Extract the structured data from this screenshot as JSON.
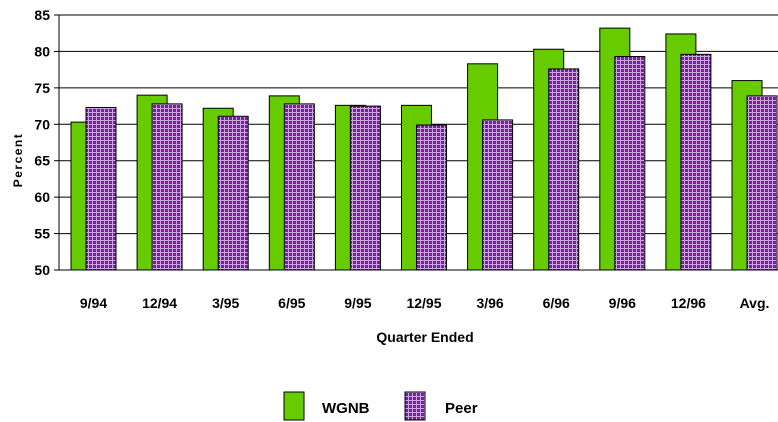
{
  "colors": {
    "wgnb_fill": "#66cc00",
    "peer_fill": "#7b1fa2",
    "peer_grid": "#c9a6e0",
    "gridline": "#000000"
  },
  "chart_data": {
    "type": "bar",
    "categories": [
      "9/94",
      "12/94",
      "3/95",
      "6/95",
      "9/95",
      "12/95",
      "3/96",
      "6/96",
      "9/96",
      "12/96",
      "Avg."
    ],
    "series": [
      {
        "name": "WGNB",
        "values": [
          70.3,
          74.0,
          72.2,
          73.9,
          72.6,
          72.6,
          78.3,
          80.3,
          83.2,
          82.4,
          76.0
        ]
      },
      {
        "name": "Peer",
        "values": [
          72.3,
          72.8,
          71.1,
          72.8,
          72.5,
          69.9,
          70.6,
          77.6,
          79.3,
          79.6,
          73.9
        ]
      }
    ],
    "title": "",
    "xlabel": "Quarter Ended",
    "ylabel": "Percent",
    "ylim": [
      50,
      85
    ],
    "yticks": [
      50,
      55,
      60,
      65,
      70,
      75,
      80,
      85
    ],
    "grid": true,
    "legend_position": "bottom-center"
  }
}
